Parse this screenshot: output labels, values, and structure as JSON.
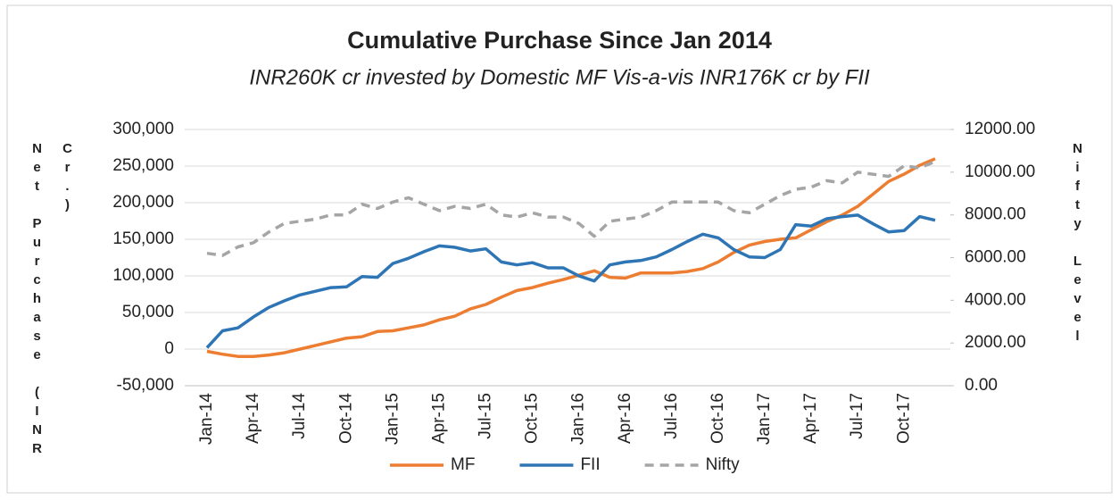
{
  "chart_data": {
    "type": "line",
    "title": "Cumulative Purchase Since Jan 2014",
    "subtitle": "INR260K cr invested by Domestic MF Vis-a-vis INR176K cr by FII",
    "y_label": "Net Purchase (INR Cr.)",
    "y2_label": "Nifty Level",
    "categories": [
      "Jan-14",
      null,
      null,
      "Apr-14",
      null,
      null,
      "Jul-14",
      null,
      null,
      "Oct-14",
      null,
      null,
      "Jan-15",
      null,
      null,
      "Apr-15",
      null,
      null,
      "Jul-15",
      null,
      null,
      "Oct-15",
      null,
      null,
      "Jan-16",
      null,
      null,
      "Apr-16",
      null,
      null,
      "Jul-16",
      null,
      null,
      "Oct-16",
      null,
      null,
      "Jan-17",
      null,
      null,
      "Apr-17",
      null,
      null,
      "Jul-17",
      null,
      null,
      "Oct-17",
      null,
      null
    ],
    "series": [
      {
        "name": "MF",
        "color": "#ed7d31",
        "values": [
          -3000,
          -7000,
          -10000,
          -10000,
          -8000,
          -5000,
          0,
          5000,
          10000,
          15000,
          17000,
          24000,
          25000,
          29000,
          33000,
          40000,
          45000,
          55000,
          61000,
          71000,
          80000,
          84000,
          90000,
          95000,
          101000,
          107000,
          98000,
          97000,
          104000,
          104000,
          104000,
          106000,
          110000,
          119000,
          132000,
          142000,
          147000,
          150000,
          152000,
          163000,
          174000,
          183000,
          195000,
          212000,
          229000,
          239000,
          251000,
          260000
        ]
      },
      {
        "name": "FII",
        "color": "#2e75b6",
        "values": [
          2000,
          25000,
          29000,
          44000,
          57000,
          66000,
          74000,
          79000,
          84000,
          85000,
          99000,
          98000,
          117000,
          124000,
          133000,
          141000,
          139000,
          134000,
          137000,
          119000,
          115000,
          118000,
          111000,
          111000,
          100000,
          93000,
          115000,
          119000,
          121000,
          126000,
          136000,
          147000,
          157000,
          152000,
          136000,
          126000,
          125000,
          136000,
          170000,
          168000,
          178000,
          181000,
          183000,
          171000,
          160000,
          162000,
          181000,
          176000
        ]
      },
      {
        "name": "Nifty",
        "color": "#a5a5a5",
        "axis": "y2",
        "dashed": true,
        "values": [
          6200,
          6100,
          6500,
          6700,
          7200,
          7600,
          7700,
          7800,
          8000,
          8000,
          8500,
          8300,
          8600,
          8800,
          8500,
          8200,
          8400,
          8300,
          8500,
          8000,
          7900,
          8100,
          7900,
          7900,
          7600,
          7000,
          7700,
          7800,
          7900,
          8200,
          8600,
          8600,
          8600,
          8600,
          8200,
          8100,
          8500,
          8900,
          9200,
          9300,
          9600,
          9500,
          10000,
          9900,
          9800,
          10300,
          10200,
          10500
        ]
      }
    ],
    "ylim": [
      -50000,
      300000
    ],
    "yticks": [
      {
        "value": -50000,
        "label": "-50,000"
      },
      0,
      {
        "value": 50000,
        "label": "50,000"
      },
      {
        "value": 100000,
        "label": "100,000"
      },
      {
        "value": 150000,
        "label": "150,000"
      },
      {
        "value": 200000,
        "label": "200,000"
      },
      {
        "value": 250000,
        "label": "250,000"
      },
      {
        "value": 300000,
        "label": "300,000"
      }
    ],
    "y2lim": [
      0,
      12000
    ],
    "y2ticks": [
      {
        "value": 0,
        "label": "0.00"
      },
      {
        "value": 2000,
        "label": "2000.00"
      },
      {
        "value": 4000,
        "label": "4000.00"
      },
      {
        "value": 6000,
        "label": "6000.00"
      },
      {
        "value": 8000,
        "label": "8000.00"
      },
      {
        "value": 10000,
        "label": "10000.00"
      },
      {
        "value": 12000,
        "label": "12000.00"
      }
    ],
    "grid": true,
    "legend": "bottom"
  }
}
